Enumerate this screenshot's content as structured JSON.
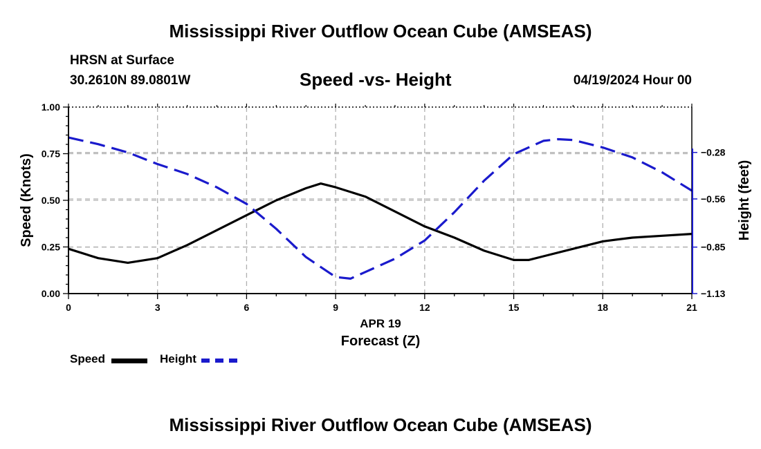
{
  "header": {
    "title": "Mississippi River Outflow Ocean Cube (AMSEAS)",
    "station": "HRSN at Surface",
    "coords": "30.2610N  89.0801W",
    "chart_title": "Speed -vs- Height",
    "datetime": "04/19/2024 Hour 00"
  },
  "footer": {
    "title": "Mississippi River Outflow Ocean Cube (AMSEAS)"
  },
  "legend": {
    "speed_label": "Speed",
    "height_label": "Height"
  },
  "colors": {
    "speed": "#000000",
    "height": "#1a1acc",
    "grid": "#b0b0b0"
  },
  "chart_data": {
    "type": "line",
    "title": "Speed -vs- Height",
    "xlabel": "Forecast (Z)",
    "xlabel_date": "APR 19",
    "ylabel": "Speed (Knots)",
    "y2label": "Height (feet)",
    "xlim": [
      0,
      21
    ],
    "ylim": [
      0,
      1
    ],
    "y2lim": [
      -1.13,
      -0.0067
    ],
    "x_ticks": [
      0,
      3,
      6,
      9,
      12,
      15,
      18,
      21
    ],
    "y_ticks": [
      0.0,
      0.25,
      0.5,
      0.75,
      1.0
    ],
    "y_tick_labels": [
      "0.00",
      "0.25",
      "0.50",
      "0.75",
      "1.00"
    ],
    "y2_ticks": [
      -0.28,
      -0.56,
      -0.85,
      -1.13
    ],
    "y2_tick_labels": [
      "−0.28",
      "−0.56",
      "−0.85",
      "−1.13"
    ],
    "grid": true,
    "series": [
      {
        "name": "Speed",
        "axis": "left",
        "style": "solid",
        "x": [
          0,
          1,
          2,
          3,
          4,
          5,
          6,
          7,
          8,
          8.5,
          9,
          10,
          11,
          12,
          13,
          14,
          15,
          15.5,
          16,
          17,
          18,
          19,
          20,
          21
        ],
        "y": [
          0.24,
          0.19,
          0.165,
          0.19,
          0.26,
          0.34,
          0.42,
          0.5,
          0.565,
          0.59,
          0.57,
          0.52,
          0.44,
          0.36,
          0.3,
          0.23,
          0.18,
          0.18,
          0.2,
          0.24,
          0.28,
          0.3,
          0.31,
          0.32
        ]
      },
      {
        "name": "Height",
        "axis": "right",
        "style": "dashed",
        "x": [
          0,
          1,
          2,
          3,
          4,
          5,
          6,
          7,
          8,
          9,
          9.5,
          10,
          11,
          12,
          13,
          14,
          15,
          16,
          16.5,
          17,
          18,
          19,
          20,
          21
        ],
        "y": [
          -0.19,
          -0.23,
          -0.28,
          -0.35,
          -0.41,
          -0.49,
          -0.59,
          -0.74,
          -0.91,
          -1.03,
          -1.04,
          -1.0,
          -0.92,
          -0.81,
          -0.64,
          -0.45,
          -0.29,
          -0.21,
          -0.2,
          -0.205,
          -0.25,
          -0.31,
          -0.4,
          -0.51
        ]
      }
    ]
  }
}
